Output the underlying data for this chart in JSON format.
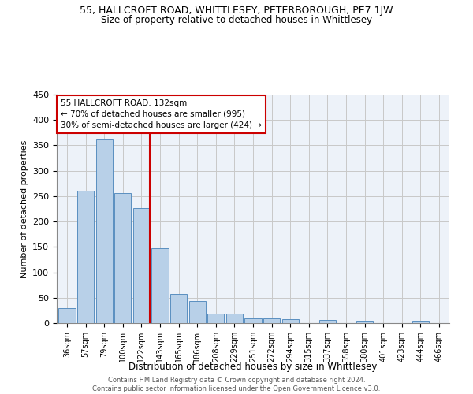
{
  "title": "55, HALLCROFT ROAD, WHITTLESEY, PETERBOROUGH, PE7 1JW",
  "subtitle": "Size of property relative to detached houses in Whittlesey",
  "xlabel": "Distribution of detached houses by size in Whittlesey",
  "ylabel": "Number of detached properties",
  "categories": [
    "36sqm",
    "57sqm",
    "79sqm",
    "100sqm",
    "122sqm",
    "143sqm",
    "165sqm",
    "186sqm",
    "208sqm",
    "229sqm",
    "251sqm",
    "272sqm",
    "294sqm",
    "315sqm",
    "337sqm",
    "358sqm",
    "380sqm",
    "401sqm",
    "423sqm",
    "444sqm",
    "466sqm"
  ],
  "values": [
    30,
    260,
    362,
    256,
    226,
    148,
    57,
    44,
    18,
    18,
    10,
    10,
    7,
    0,
    6,
    0,
    4,
    0,
    0,
    4,
    0
  ],
  "bar_color": "#b8d0e8",
  "bar_edge_color": "#5a8fc0",
  "highlight_label": "55 HALLCROFT ROAD: 132sqm",
  "annotation_line1": "← 70% of detached houses are smaller (995)",
  "annotation_line2": "30% of semi-detached houses are larger (424) →",
  "vline_color": "#cc0000",
  "vline_x_index": 4,
  "ylim": [
    0,
    450
  ],
  "yticks": [
    0,
    50,
    100,
    150,
    200,
    250,
    300,
    350,
    400,
    450
  ],
  "background_color": "#edf2f9",
  "footer_line1": "Contains HM Land Registry data © Crown copyright and database right 2024.",
  "footer_line2": "Contains public sector information licensed under the Open Government Licence v3.0."
}
